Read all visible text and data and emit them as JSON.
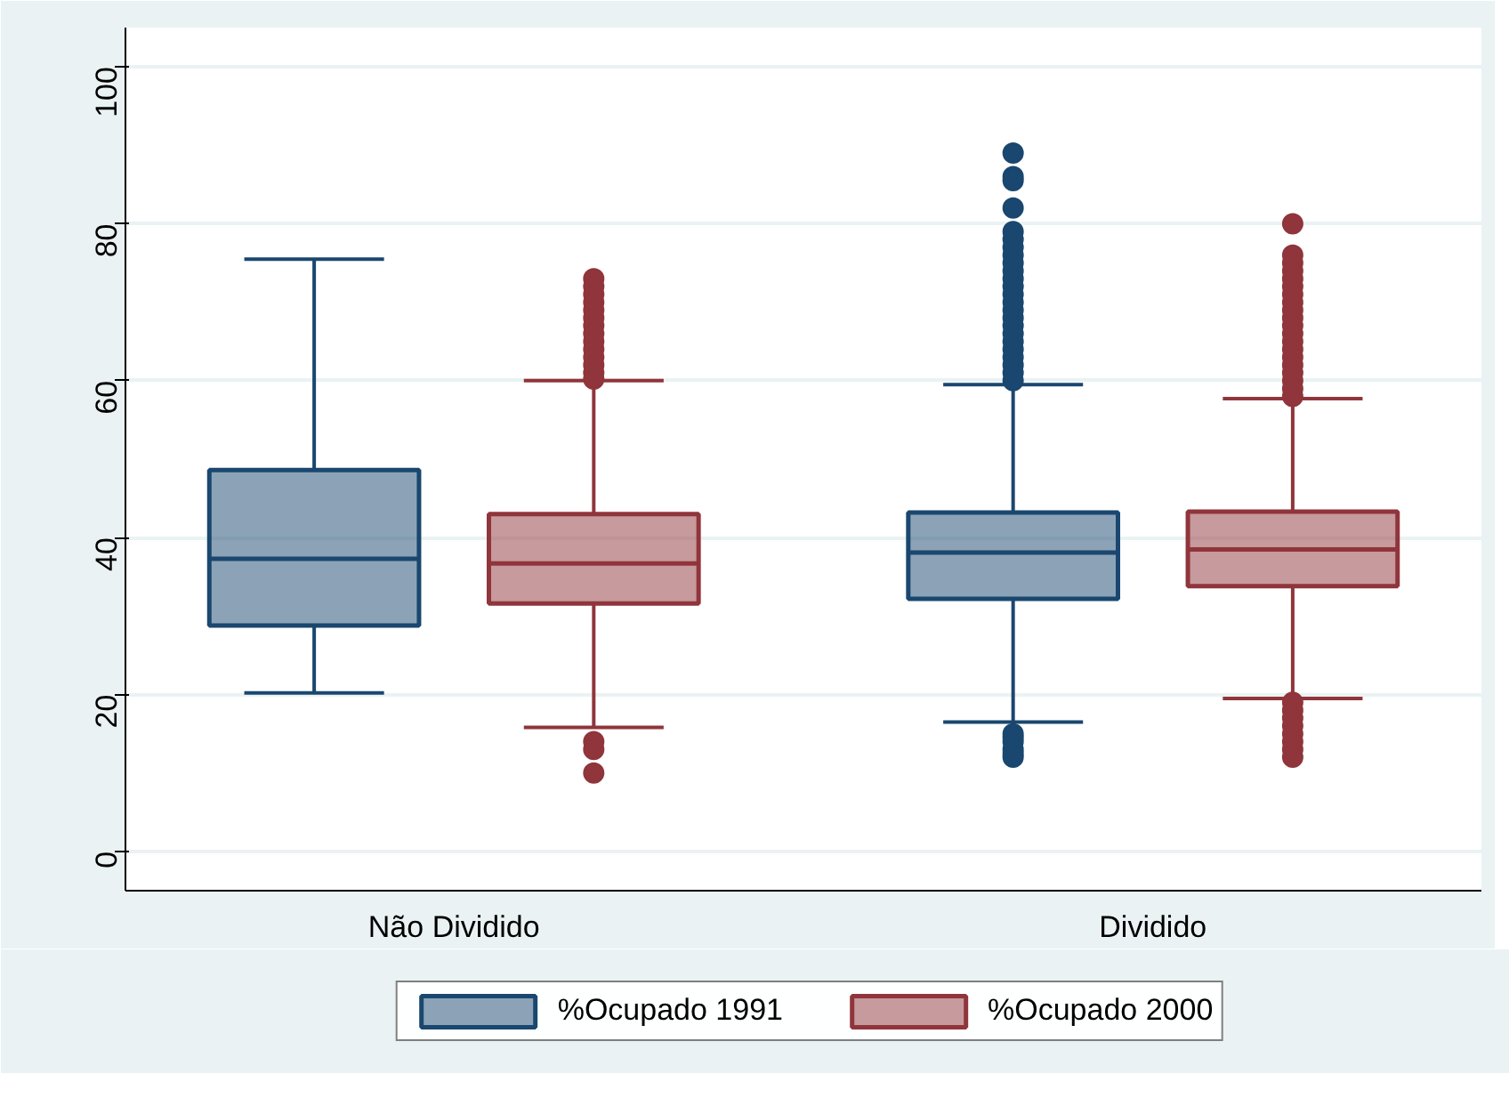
{
  "chart_data": {
    "type": "box",
    "categories": [
      "Não Dividido",
      "Dividido"
    ],
    "series": [
      {
        "name": "%Ocupado 1991",
        "color": "#1a476f",
        "boxes": [
          {
            "low": 20.2,
            "q1": 28.8,
            "median": 37.3,
            "q3": 48.6,
            "high": 75.5
          },
          {
            "low": 16.5,
            "q1": 32.2,
            "median": 38.1,
            "q3": 43.2,
            "high": 59.5,
            "outliers": [
              89,
              86,
              85.5,
              82,
              79,
              78,
              77,
              76,
              75,
              74,
              73,
              72,
              71,
              70,
              69,
              68,
              67,
              66,
              65,
              64,
              63,
              62,
              61,
              60,
              15,
              14.5,
              14,
              13,
              12.5,
              12
            ]
          }
        ]
      },
      {
        "name": "%Ocupado 2000",
        "color": "#90353b",
        "boxes": [
          {
            "low": 15.8,
            "q1": 31.6,
            "median": 36.7,
            "q3": 43,
            "high": 60,
            "outliers": [
              73,
              72,
              71,
              70,
              69,
              68,
              67,
              66,
              65,
              64,
              63,
              62,
              61,
              60.2,
              14,
              13,
              10
            ]
          },
          {
            "low": 19.5,
            "q1": 33.8,
            "median": 38.5,
            "q3": 43.3,
            "high": 57.7,
            "outliers": [
              80,
              76,
              75,
              74,
              73,
              72,
              71,
              70,
              69,
              68,
              67,
              66,
              65,
              64,
              63,
              62,
              61,
              60,
              59,
              58,
              19,
              18,
              17,
              16,
              15,
              14,
              13,
              12
            ]
          }
        ]
      }
    ],
    "ylim": [
      -5,
      105
    ],
    "yticks": [
      0,
      20,
      40,
      60,
      80,
      100
    ],
    "grid": "y",
    "legend": "bottom"
  }
}
